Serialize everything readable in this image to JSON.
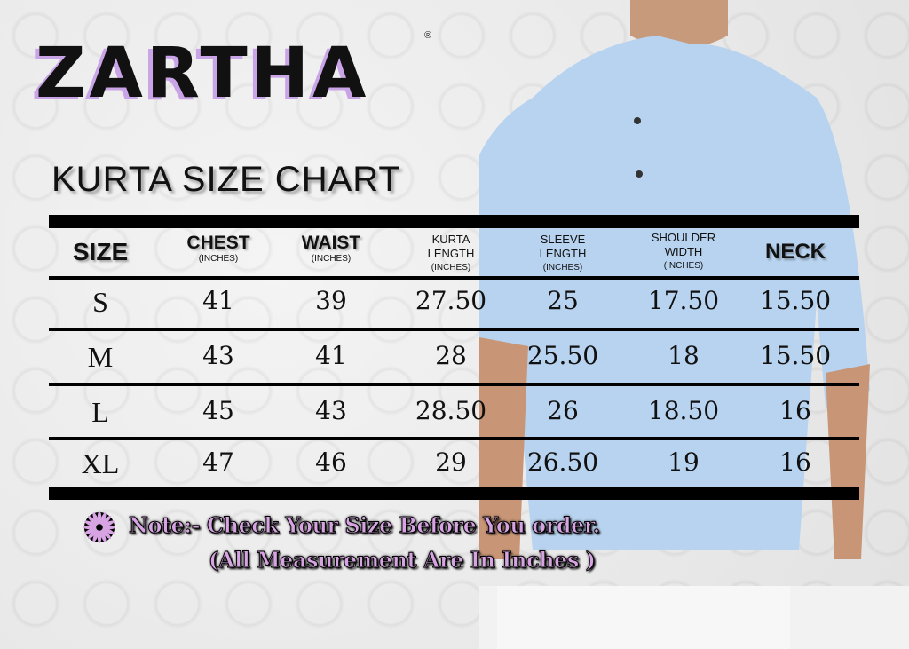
{
  "brand": {
    "name": "ZARTHA",
    "registered": "®"
  },
  "title": "KURTA SIZE CHART",
  "colors": {
    "accent": "#d7a3e3",
    "shirt": "#b8d3ef",
    "bars": "#000000"
  },
  "table": {
    "headers": [
      {
        "label": "SIZE",
        "unit": ""
      },
      {
        "label": "CHEST",
        "unit": "(INCHES)"
      },
      {
        "label": "WAIST",
        "unit": "(INCHES)"
      },
      {
        "label": "KURTA",
        "label2": "LENGTH",
        "unit": "(INCHES)"
      },
      {
        "label": "SLEEVE",
        "label2": "LENGTH",
        "unit": "(INCHES)"
      },
      {
        "label": "SHOULDER",
        "label2": "WIDTH",
        "unit": "(INCHES)"
      },
      {
        "label": "NECK",
        "unit": ""
      }
    ],
    "rows": [
      [
        "S",
        "41",
        "39",
        "27.50",
        "25",
        "17.50",
        "15.50"
      ],
      [
        "M",
        "43",
        "41",
        "28",
        "25.50",
        "18",
        "15.50"
      ],
      [
        "L",
        "45",
        "43",
        "28.50",
        "26",
        "18.50",
        "16"
      ],
      [
        "XL",
        "47",
        "46",
        "29",
        "26.50",
        "19",
        "16"
      ]
    ]
  },
  "note": {
    "line1": "Note:- Check Your Size Before You order.",
    "line2": "(All Measurement Are In Inches )",
    "icon": "flower-icon"
  }
}
